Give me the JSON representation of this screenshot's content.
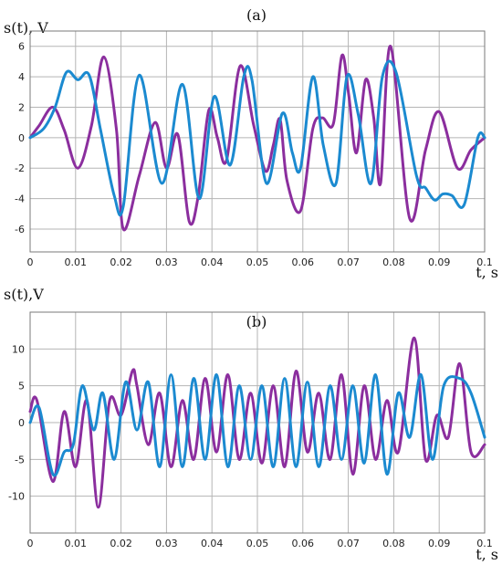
{
  "chart_data": [
    {
      "type": "line",
      "title": "(a)",
      "ylabel": "s(t), V",
      "xlabel": "t, s",
      "xlim": [
        0,
        0.1
      ],
      "ylim": [
        -7.5,
        7
      ],
      "xticks": [
        0,
        0.01,
        0.02,
        0.03,
        0.04,
        0.05,
        0.06,
        0.07,
        0.08,
        0.09,
        0.1
      ],
      "xtick_labels": [
        "0",
        "0.01",
        "0.02",
        "0.03",
        "0.04",
        "0.05",
        "0.06",
        "0.07",
        "0.08",
        "0.09",
        "0.1"
      ],
      "yticks": [
        -6,
        -4,
        -2,
        0,
        2,
        4,
        6
      ],
      "ytick_labels": [
        "-6",
        "-4",
        "-2",
        "0",
        "2",
        "4",
        "6"
      ],
      "grid": true,
      "series": [
        {
          "color": "#8b2e9e",
          "x": [
            0,
            0.002,
            0.005,
            0.0075,
            0.0105,
            0.0135,
            0.0162,
            0.019,
            0.0205,
            0.024,
            0.0275,
            0.03,
            0.0325,
            0.035,
            0.037,
            0.0393,
            0.0412,
            0.0432,
            0.0462,
            0.0492,
            0.0518,
            0.0535,
            0.055,
            0.0565,
            0.0595,
            0.0622,
            0.0643,
            0.0667,
            0.0686,
            0.0701,
            0.0718,
            0.0738,
            0.0756,
            0.0771,
            0.0793,
            0.0835,
            0.087,
            0.09,
            0.094,
            0.097,
            0.1
          ],
          "y": [
            0,
            0.8,
            2.0,
            0.5,
            -2.0,
            0.8,
            5.3,
            0.5,
            -6.0,
            -2.5,
            1.0,
            -2.0,
            0.2,
            -5.5,
            -3.8,
            1.8,
            0,
            -1.5,
            4.7,
            0.8,
            -2.2,
            -0.5,
            1.2,
            -2.8,
            -4.8,
            0.6,
            1.3,
            0.9,
            5.4,
            2.8,
            -1.0,
            3.8,
            1.3,
            -3.0,
            6.0,
            -5.3,
            -0.8,
            1.7,
            -2.0,
            -0.8,
            0
          ]
        },
        {
          "color": "#1b8ad0",
          "x": [
            0,
            0.003,
            0.0055,
            0.008,
            0.0105,
            0.013,
            0.0155,
            0.0185,
            0.0205,
            0.024,
            0.029,
            0.0335,
            0.0372,
            0.0405,
            0.044,
            0.047,
            0.0488,
            0.052,
            0.0555,
            0.0577,
            0.0595,
            0.0622,
            0.0645,
            0.0673,
            0.0697,
            0.0722,
            0.075,
            0.0775,
            0.0805,
            0.085,
            0.087,
            0.089,
            0.0908,
            0.0928,
            0.0955,
            0.0985,
            0.1
          ],
          "y": [
            0,
            0.6,
            2.0,
            4.3,
            3.8,
            4.1,
            0.5,
            -3.8,
            -4.5,
            4.1,
            -3.0,
            3.5,
            -4.0,
            2.7,
            -1.8,
            4.0,
            3.8,
            -3.0,
            1.6,
            -1.0,
            -2.0,
            4.0,
            -0.5,
            -3.0,
            4.0,
            1.5,
            -3.0,
            4.0,
            4.3,
            -2.5,
            -3.3,
            -4.1,
            -3.7,
            -3.8,
            -4.4,
            0,
            0
          ]
        }
      ]
    },
    {
      "type": "line",
      "title": "(b)",
      "ylabel": "s(t),V",
      "xlabel": "t, s",
      "xlim": [
        0,
        0.1
      ],
      "ylim": [
        -15,
        15
      ],
      "xticks": [
        0,
        0.01,
        0.02,
        0.03,
        0.04,
        0.05,
        0.06,
        0.07,
        0.08,
        0.09,
        0.1
      ],
      "xtick_labels": [
        "0",
        "0.01",
        "0.02",
        "0.03",
        "0.04",
        "0.05",
        "0.06",
        "0.07",
        "0.08",
        "0.09",
        "0.1"
      ],
      "yticks": [
        -10,
        -5,
        0,
        5,
        10
      ],
      "ytick_labels": [
        "-10",
        "-5",
        "0",
        "5",
        "10"
      ],
      "grid": true,
      "series": [
        {
          "color": "#8b2e9e",
          "x": [
            0,
            0.0015,
            0.005,
            0.0075,
            0.01,
            0.0125,
            0.015,
            0.0175,
            0.02,
            0.0225,
            0.0235,
            0.026,
            0.0285,
            0.031,
            0.0335,
            0.036,
            0.0385,
            0.041,
            0.0435,
            0.046,
            0.0485,
            0.051,
            0.0535,
            0.056,
            0.0585,
            0.061,
            0.0635,
            0.066,
            0.0685,
            0.071,
            0.0735,
            0.076,
            0.0785,
            0.081,
            0.0845,
            0.087,
            0.0895,
            0.092,
            0.0945,
            0.097,
            0.1
          ],
          "y": [
            1.5,
            3.0,
            -8.0,
            1.5,
            -6.0,
            3.0,
            -11.5,
            3.0,
            1.0,
            7.0,
            5.0,
            -3.0,
            4.0,
            -6.0,
            3.0,
            -5.0,
            6.0,
            -4.0,
            6.5,
            -5.0,
            4.0,
            -5.5,
            5.0,
            -6.0,
            7.0,
            -4.0,
            4.0,
            -5.0,
            6.5,
            -7.0,
            5.0,
            -5.0,
            3.0,
            -4.0,
            11.5,
            -5.0,
            1.0,
            -2.0,
            8.0,
            -4.0,
            -3.0
          ]
        },
        {
          "color": "#1b8ad0",
          "x": [
            0,
            0.002,
            0.005,
            0.0075,
            0.0095,
            0.0115,
            0.014,
            0.016,
            0.0185,
            0.021,
            0.0235,
            0.026,
            0.0285,
            0.031,
            0.0335,
            0.036,
            0.0385,
            0.041,
            0.0435,
            0.046,
            0.0485,
            0.051,
            0.0535,
            0.056,
            0.0585,
            0.061,
            0.0635,
            0.066,
            0.0685,
            0.071,
            0.0735,
            0.076,
            0.0785,
            0.081,
            0.0835,
            0.086,
            0.0885,
            0.091,
            0.0945,
            0.097,
            0.1
          ],
          "y": [
            0,
            2.0,
            -7.0,
            -4.0,
            -3.0,
            5.0,
            -1.0,
            4.0,
            -5.0,
            5.5,
            -1.0,
            5.5,
            -6.0,
            6.5,
            -6.0,
            6.0,
            -5.0,
            6.5,
            -6.0,
            5.0,
            -5.0,
            5.0,
            -6.0,
            6.0,
            -6.0,
            5.5,
            -6.0,
            5.0,
            -5.0,
            5.0,
            -5.5,
            6.5,
            -7.0,
            4.0,
            -2.0,
            6.5,
            -5.0,
            5.0,
            6.0,
            4.0,
            -2.0
          ]
        }
      ]
    }
  ]
}
